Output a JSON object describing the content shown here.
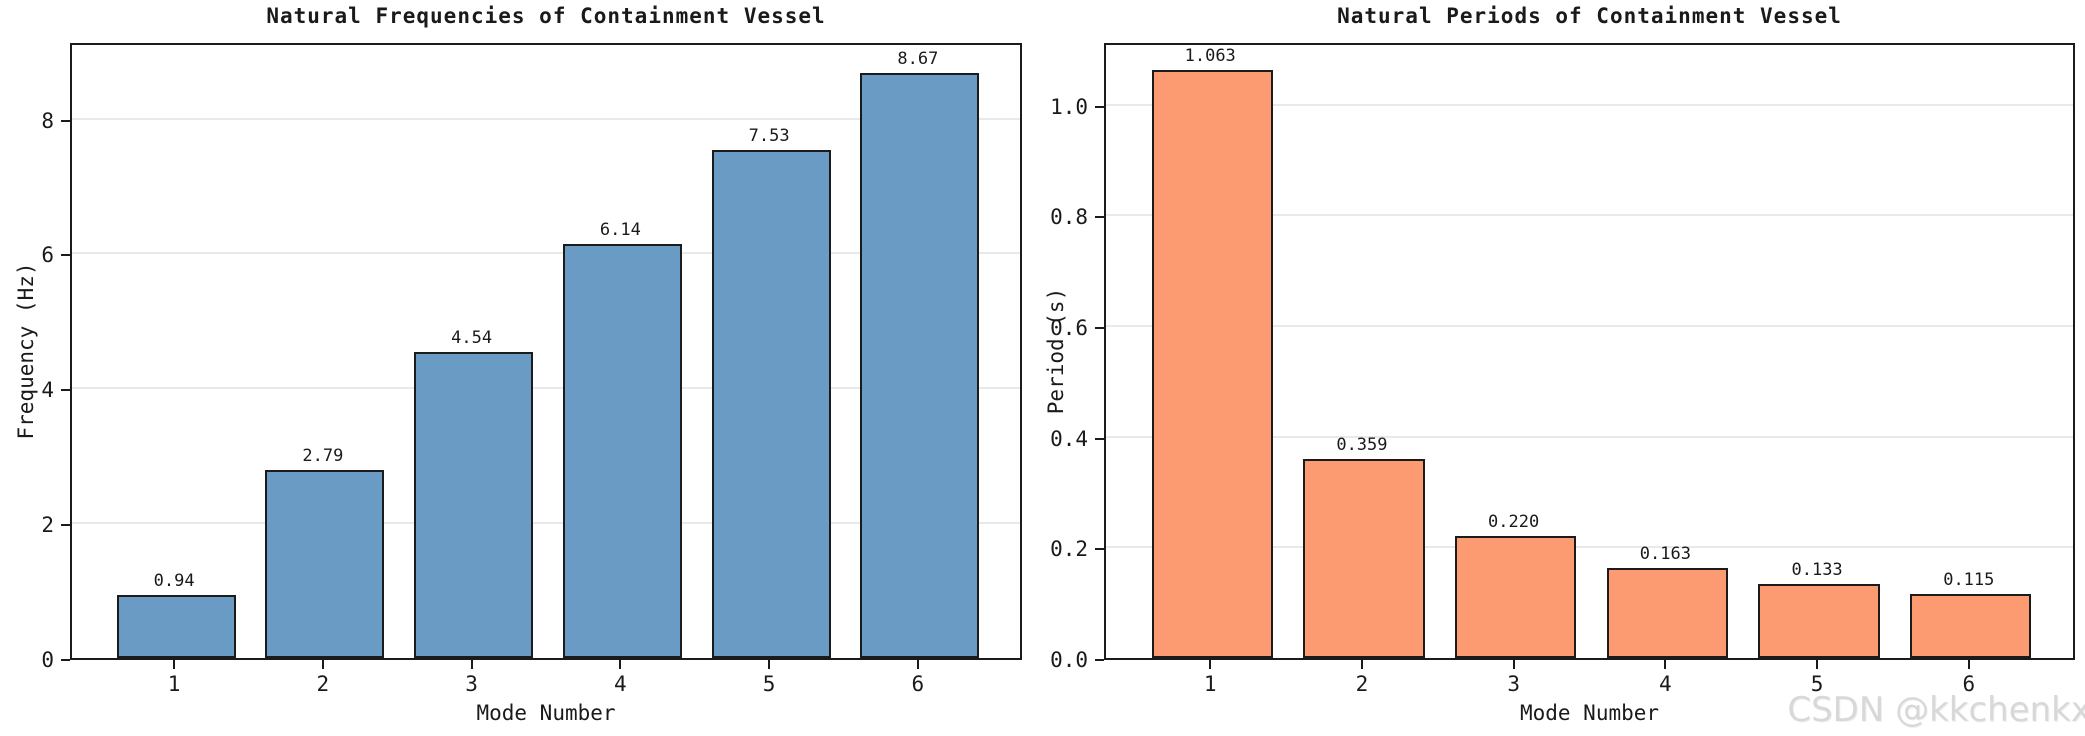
{
  "figure": {
    "background": "#ffffff"
  },
  "watermark": {
    "text": "CSDN @kkchenkx",
    "color": "#d8d8d8"
  },
  "chart_data": [
    {
      "type": "bar",
      "title": "Natural Frequencies of Containment Vessel",
      "xlabel": "Mode Number",
      "ylabel": "Frequency (Hz)",
      "categories": [
        "1",
        "2",
        "3",
        "4",
        "5",
        "6"
      ],
      "values": [
        0.94,
        2.79,
        4.54,
        6.14,
        7.53,
        8.67
      ],
      "bar_labels": [
        "0.94",
        "2.79",
        "4.54",
        "6.14",
        "7.53",
        "8.67"
      ],
      "yticks": [
        0,
        2,
        4,
        6,
        8
      ],
      "ytick_labels": [
        "0",
        "2",
        "4",
        "6",
        "8"
      ],
      "ylim": [
        0,
        9.15
      ],
      "xlim": [
        0.3,
        6.7
      ],
      "bar_width_units": 0.8,
      "bar_color": "#6a9bc5",
      "bar_edge_color": "#1b1b1b",
      "grid": true,
      "legend_position": "none"
    },
    {
      "type": "bar",
      "title": "Natural Periods of Containment Vessel",
      "xlabel": "Mode Number",
      "ylabel": "Period (s)",
      "categories": [
        "1",
        "2",
        "3",
        "4",
        "5",
        "6"
      ],
      "values": [
        1.063,
        0.359,
        0.22,
        0.163,
        0.133,
        0.115
      ],
      "bar_labels": [
        "1.063",
        "0.359",
        "0.220",
        "0.163",
        "0.133",
        "0.115"
      ],
      "yticks": [
        0.0,
        0.2,
        0.4,
        0.6,
        0.8,
        1.0
      ],
      "ytick_labels": [
        "0.0",
        "0.2",
        "0.4",
        "0.6",
        "0.8",
        "1.0"
      ],
      "ylim": [
        0,
        1.115
      ],
      "xlim": [
        0.3,
        6.7
      ],
      "bar_width_units": 0.8,
      "bar_color": "#fc9b72",
      "bar_edge_color": "#1b1b1b",
      "grid": true,
      "legend_position": "none"
    }
  ]
}
